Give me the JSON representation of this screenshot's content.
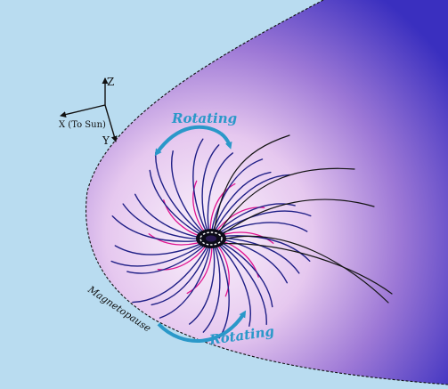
{
  "colors": {
    "outside": "#b9dcf0",
    "magnetosphere_inner": "#fbf4fc",
    "magnetosphere_outer": "#3a2fbf",
    "field_line_blue": "#1f1f86",
    "field_line_pink": "#e0148f",
    "field_line_open": "#151515",
    "rotating_arrow": "#2a98c9",
    "rotating_text": "#2a98c9"
  },
  "axes": {
    "x_label": "X (To Sun)",
    "y_label": "Y",
    "z_label": "Z"
  },
  "annotations": {
    "rotating_top": "Rotating",
    "rotating_bottom": "Rotating",
    "magnetopause": "Magnetopause"
  },
  "icons": {
    "planet": "planet-icon",
    "axis_triad": "axis-triad-icon",
    "rotation_arrow": "curved-arrow-icon"
  }
}
